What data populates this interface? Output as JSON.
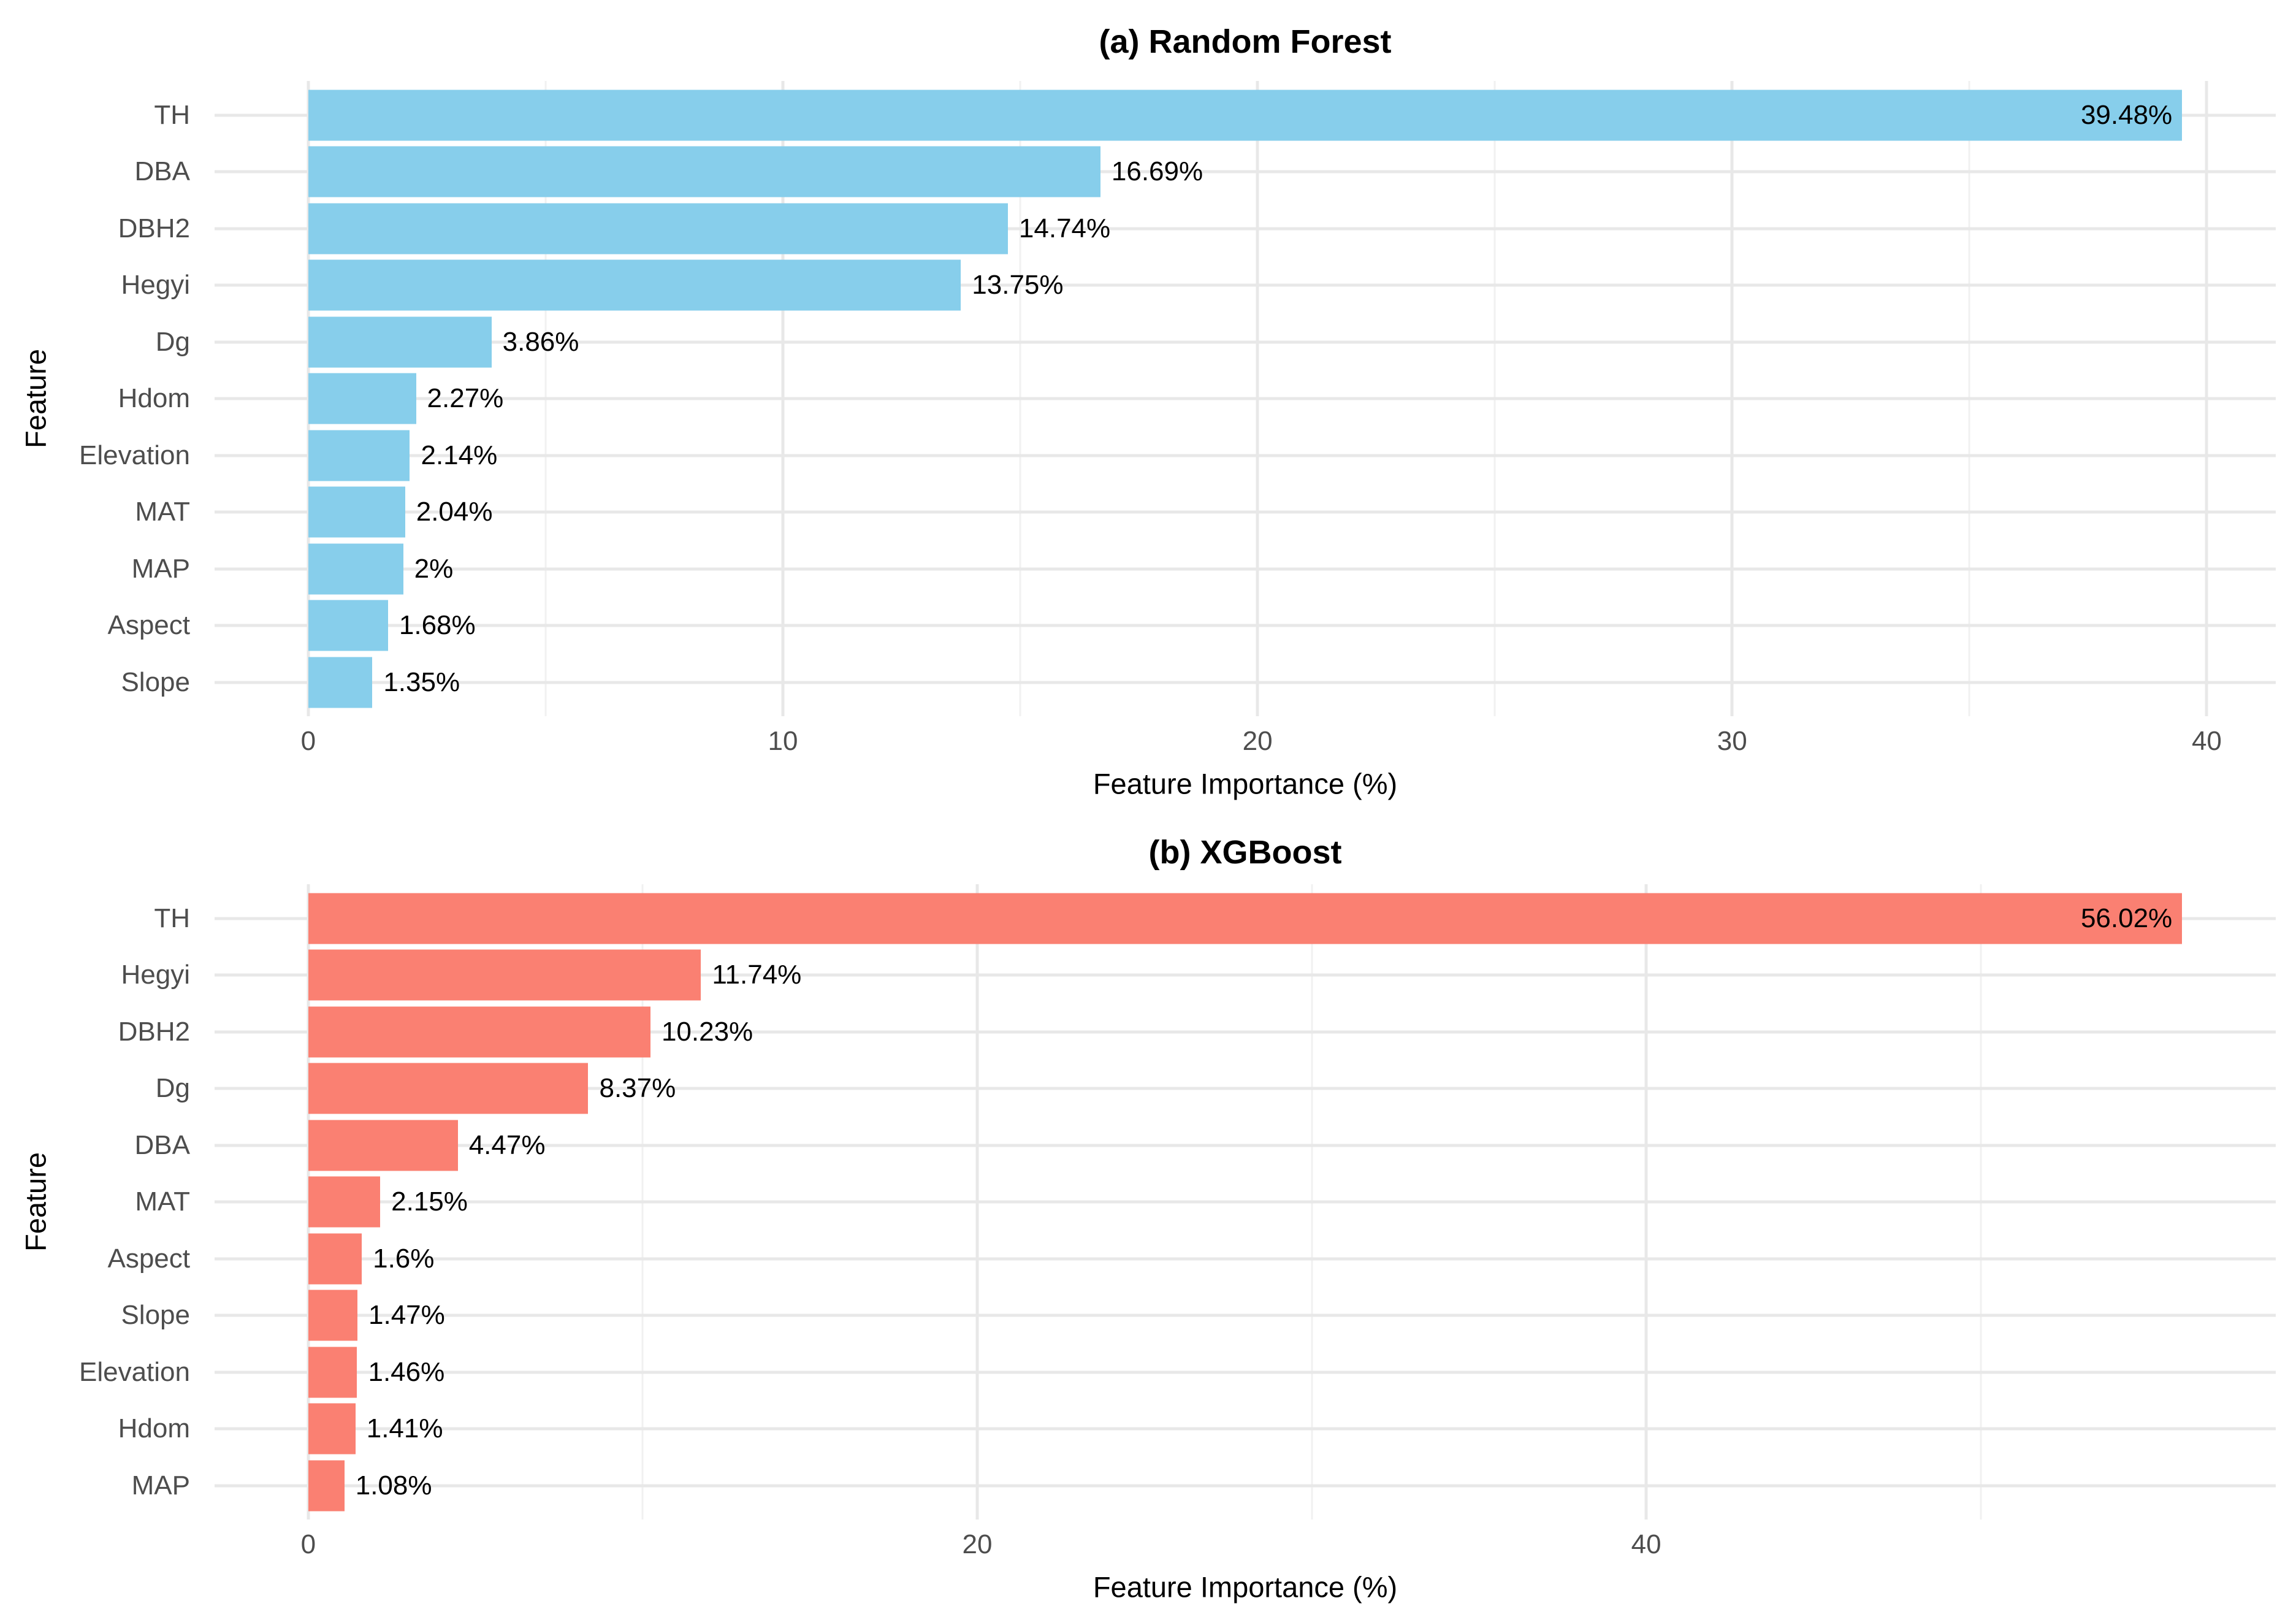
{
  "figure": {
    "background_color": "#ffffff",
    "grid_major_color": "#e8e8e8",
    "grid_minor_color": "#f1f1f1",
    "axis_text_color": "#4d4d4d",
    "label_text_color": "#000000"
  },
  "chart_data": [
    {
      "type": "bar",
      "orientation": "horizontal",
      "title": "(a) Random Forest",
      "xlabel": "Feature Importance (%)",
      "ylabel": "Feature",
      "bar_color": "#87CEEB",
      "categories": [
        "TH",
        "DBA",
        "DBH2",
        "Hegyi",
        "Dg",
        "Hdom",
        "Elevation",
        "MAT",
        "MAP",
        "Aspect",
        "Slope"
      ],
      "values": [
        39.48,
        16.69,
        14.74,
        13.75,
        3.86,
        2.27,
        2.14,
        2.04,
        2,
        1.68,
        1.35
      ],
      "value_labels": [
        "39.48%",
        "16.69%",
        "14.74%",
        "13.75%",
        "3.86%",
        "2.27%",
        "2.14%",
        "2.04%",
        "2%",
        "1.68%",
        "1.35%"
      ],
      "x_ticks": [
        0,
        10,
        20,
        30,
        40
      ],
      "x_minor_ticks": [
        5,
        15,
        25,
        35
      ],
      "xlim": [
        -1.974,
        41.454
      ],
      "grid": true,
      "legend": false
    },
    {
      "type": "bar",
      "orientation": "horizontal",
      "title": "(b) XGBoost",
      "xlabel": "Feature Importance (%)",
      "ylabel": "Feature",
      "bar_color": "#FA8072",
      "categories": [
        "TH",
        "Hegyi",
        "DBH2",
        "Dg",
        "DBA",
        "MAT",
        "Aspect",
        "Slope",
        "Elevation",
        "Hdom",
        "MAP"
      ],
      "values": [
        56.02,
        11.74,
        10.23,
        8.37,
        4.47,
        2.15,
        1.6,
        1.47,
        1.46,
        1.41,
        1.08
      ],
      "value_labels": [
        "56.02%",
        "11.74%",
        "10.23%",
        "8.37%",
        "4.47%",
        "2.15%",
        "1.6%",
        "1.47%",
        "1.46%",
        "1.41%",
        "1.08%"
      ],
      "x_ticks": [
        0,
        20,
        40
      ],
      "x_minor_ticks": [
        10,
        30,
        50
      ],
      "xlim": [
        -2.801,
        58.821
      ],
      "grid": true,
      "legend": false
    }
  ]
}
